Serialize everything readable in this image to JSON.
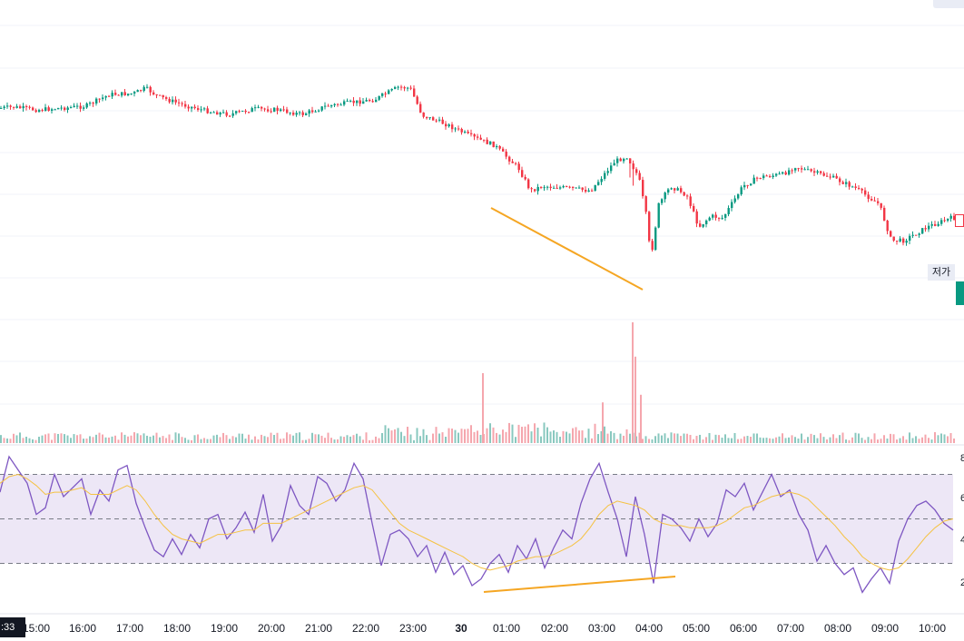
{
  "labels": {
    "clock": ":33",
    "low_tag": "저가",
    "scale_right": [
      "8",
      "6",
      "4",
      "2"
    ]
  },
  "colors": {
    "up": "#089981",
    "down": "#f23645",
    "rsi_line": "#7e57c2",
    "rsi_ma": "#f5c242",
    "rsi_band": "#ede7f6",
    "trendline": "#f5a623",
    "grid": "#f0f3fa"
  },
  "chart_data": [
    {
      "type": "candlestick",
      "title": "",
      "x_ticks": [
        "15:00",
        "16:00",
        "17:00",
        "18:00",
        "19:00",
        "20:00",
        "21:00",
        "22:00",
        "23:00",
        "30",
        "01:00",
        "02:00",
        "03:00",
        "04:00",
        "05:00",
        "06:00",
        "07:00",
        "08:00",
        "09:00",
        "10:00"
      ],
      "price_path_keypoints": [
        {
          "t": "14:00",
          "close": 120
        },
        {
          "t": "14:30",
          "close": 118
        },
        {
          "t": "15:00",
          "close": 121
        },
        {
          "t": "15:30",
          "close": 119
        },
        {
          "t": "16:00",
          "close": 117
        },
        {
          "t": "16:30",
          "close": 104
        },
        {
          "t": "17:00",
          "close": 103
        },
        {
          "t": "17:15",
          "close": 97
        },
        {
          "t": "17:30",
          "close": 106
        },
        {
          "t": "18:00",
          "close": 115
        },
        {
          "t": "18:30",
          "close": 122
        },
        {
          "t": "19:00",
          "close": 126
        },
        {
          "t": "19:30",
          "close": 120
        },
        {
          "t": "20:00",
          "close": 121
        },
        {
          "t": "20:30",
          "close": 126
        },
        {
          "t": "21:00",
          "close": 117
        },
        {
          "t": "21:30",
          "close": 113
        },
        {
          "t": "22:00",
          "close": 110
        },
        {
          "t": "22:30",
          "close": 96
        },
        {
          "t": "22:45",
          "close": 97
        },
        {
          "t": "23:00",
          "close": 127
        },
        {
          "t": "23:30",
          "close": 137
        },
        {
          "t": "00:00",
          "close": 150
        },
        {
          "t": "00:30",
          "close": 160
        },
        {
          "t": "01:00",
          "close": 185
        },
        {
          "t": "01:15",
          "close": 210
        },
        {
          "t": "01:30",
          "close": 205
        },
        {
          "t": "02:00",
          "close": 207
        },
        {
          "t": "02:30",
          "close": 210
        },
        {
          "t": "03:00",
          "close": 178
        },
        {
          "t": "03:15",
          "close": 172
        },
        {
          "t": "03:30",
          "close": 195
        },
        {
          "t": "03:40",
          "close": 240
        },
        {
          "t": "03:45",
          "close": 285
        },
        {
          "t": "03:55",
          "close": 225
        },
        {
          "t": "04:10",
          "close": 205
        },
        {
          "t": "04:30",
          "close": 215
        },
        {
          "t": "04:45",
          "close": 250
        },
        {
          "t": "05:00",
          "close": 238
        },
        {
          "t": "05:15",
          "close": 240
        },
        {
          "t": "05:40",
          "close": 205
        },
        {
          "t": "06:00",
          "close": 195
        },
        {
          "t": "06:30",
          "close": 192
        },
        {
          "t": "06:45",
          "close": 183
        },
        {
          "t": "07:00",
          "close": 188
        },
        {
          "t": "07:30",
          "close": 195
        },
        {
          "t": "08:00",
          "close": 207
        },
        {
          "t": "08:30",
          "close": 225
        },
        {
          "t": "08:45",
          "close": 265
        },
        {
          "t": "09:00",
          "close": 265
        },
        {
          "t": "09:30",
          "close": 250
        },
        {
          "t": "10:00",
          "close": 240
        },
        {
          "t": "10:30",
          "close": 243
        }
      ],
      "annotation": "trendline from 02:30 to 03:55 sloping down"
    },
    {
      "type": "bar",
      "title": "Volume",
      "spikes": [
        {
          "t": "01:30",
          "value": 0.55
        },
        {
          "t": "03:45",
          "value": 0.32
        },
        {
          "t": "03:45b",
          "value": 0.95
        },
        {
          "t": "03:50",
          "value": 0.68
        },
        {
          "t": "03:52",
          "value": 0.38
        }
      ]
    },
    {
      "type": "line",
      "title": "RSI",
      "band": [
        30,
        70
      ],
      "midline": 50,
      "series": [
        {
          "name": "RSI",
          "values": [
            62,
            78,
            72,
            66,
            52,
            55,
            70,
            60,
            64,
            68,
            52,
            63,
            58,
            72,
            74,
            57,
            46,
            36,
            33,
            41,
            34,
            43,
            37,
            50,
            52,
            41,
            46,
            53,
            44,
            61,
            40,
            47,
            65,
            56,
            52,
            69,
            66,
            58,
            63,
            75,
            68,
            48,
            29,
            43,
            45,
            41,
            33,
            38,
            26,
            35,
            25,
            29,
            20,
            23,
            30,
            34,
            26,
            38,
            32,
            41,
            28,
            37,
            45,
            41,
            57,
            68,
            75,
            62,
            50,
            33,
            60,
            43,
            21,
            52,
            50,
            46,
            40,
            50,
            42,
            48,
            63,
            60,
            66,
            54,
            62,
            70,
            60,
            63,
            52,
            45,
            31,
            38,
            30,
            25,
            28,
            17,
            23,
            28,
            21,
            40,
            50,
            56,
            58,
            54,
            48,
            45
          ]
        },
        {
          "name": "MA",
          "values": [
            66,
            69,
            70,
            68,
            65,
            61,
            62,
            62,
            63,
            64,
            61,
            61,
            61,
            63,
            65,
            63,
            58,
            52,
            47,
            43,
            41,
            40,
            39,
            41,
            43,
            43,
            44,
            45,
            45,
            48,
            48,
            48,
            50,
            52,
            54,
            56,
            58,
            60,
            62,
            64,
            65,
            63,
            58,
            53,
            48,
            45,
            43,
            41,
            39,
            37,
            35,
            33,
            30,
            28,
            27,
            28,
            29,
            31,
            32,
            33,
            33,
            34,
            36,
            38,
            41,
            46,
            52,
            56,
            58,
            57,
            56,
            54,
            50,
            48,
            47,
            47,
            46,
            46,
            46,
            47,
            49,
            52,
            55,
            56,
            58,
            60,
            61,
            62,
            61,
            59,
            55,
            51,
            47,
            42,
            38,
            33,
            30,
            28,
            27,
            28,
            32,
            37,
            42,
            46,
            49,
            50
          ]
        }
      ],
      "annotation": "trendline from 01:00 to 04:30 sloping up"
    }
  ]
}
